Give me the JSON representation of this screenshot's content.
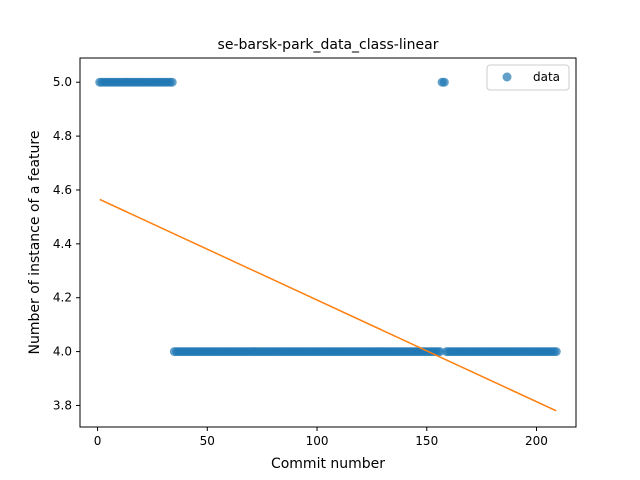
{
  "chart_data": {
    "type": "scatter",
    "title": "se-barsk-park_data_class-linear",
    "xlabel": "Commit number",
    "ylabel": "Number of instance of a feature",
    "xlim": [
      -8,
      218
    ],
    "ylim": [
      3.72,
      5.09
    ],
    "xticks": [
      0,
      50,
      100,
      150,
      200
    ],
    "yticks": [
      3.8,
      4.0,
      4.2,
      4.4,
      4.6,
      4.8,
      5.0
    ],
    "legend": {
      "placement": "top-right",
      "entries": [
        "data"
      ]
    },
    "series": [
      {
        "name": "data",
        "kind": "points",
        "color": "#1f77b4",
        "segments": [
          {
            "x_start": 1,
            "x_end": 34,
            "y": 5.0
          },
          {
            "x_start": 35,
            "x_end": 156,
            "y": 4.0
          },
          {
            "x_start": 157,
            "x_end": 158,
            "y": 5.0
          },
          {
            "x_start": 159,
            "x_end": 209,
            "y": 4.0
          }
        ]
      },
      {
        "kind": "line",
        "color": "#ff7f0e",
        "points": [
          [
            1,
            4.565
          ],
          [
            209,
            3.78
          ]
        ]
      }
    ]
  }
}
